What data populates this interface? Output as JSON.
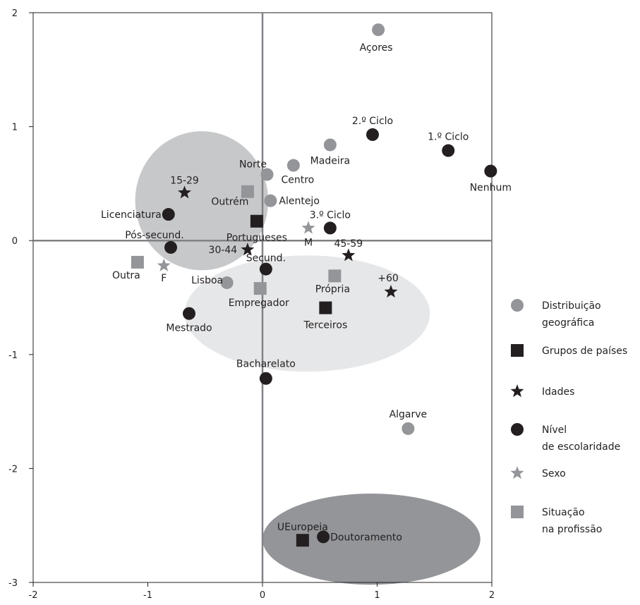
{
  "chart_data": {
    "type": "scatter",
    "title": "",
    "xlabel": "",
    "ylabel": "",
    "xlim": [
      -2,
      2
    ],
    "ylim": [
      -3,
      2
    ],
    "x_ticks": [
      "-2",
      "-1",
      "0",
      "1",
      "2"
    ],
    "y_ticks": [
      "2",
      "1",
      "0",
      "-1",
      "-2",
      "-3"
    ],
    "grid": false,
    "legend_position": "right",
    "ellipses": [
      {
        "cx": -0.53,
        "cy": 0.35,
        "rx": 0.58,
        "ry": 0.61,
        "color": "#c7c8ca"
      },
      {
        "cx": 0.39,
        "cy": -0.64,
        "rx": 1.07,
        "ry": 0.51,
        "color": "#e6e7e8"
      },
      {
        "cx": 0.95,
        "cy": -2.62,
        "rx": 0.95,
        "ry": 0.4,
        "color": "#939598"
      }
    ],
    "series": [
      {
        "name": "Distribuição geográfica",
        "name_lines": [
          "Distribuição",
          "geográfica"
        ],
        "marker": "circle",
        "color": "#939598",
        "points": [
          {
            "label": "Açores",
            "x": 1.01,
            "y": 1.85
          },
          {
            "label": "Madeira",
            "x": 0.59,
            "y": 0.84
          },
          {
            "label": "Centro",
            "x": 0.27,
            "y": 0.66
          },
          {
            "label": "Norte",
            "x": 0.04,
            "y": 0.58
          },
          {
            "label": "Alentejo",
            "x": 0.07,
            "y": 0.35
          },
          {
            "label": "Lisboa",
            "x": -0.31,
            "y": -0.37
          },
          {
            "label": "Algarve",
            "x": 1.27,
            "y": -1.65
          }
        ]
      },
      {
        "name": "Grupos de países",
        "name_lines": [
          "Grupos de países"
        ],
        "marker": "square",
        "color": "#231f20",
        "points": [
          {
            "label": "Portugueses",
            "x": -0.05,
            "y": 0.17
          },
          {
            "label": "Terceiros",
            "x": 0.55,
            "y": -0.59
          },
          {
            "label": "UEuropeia",
            "x": 0.35,
            "y": -2.63
          }
        ]
      },
      {
        "name": "Idades",
        "name_lines": [
          "Idades"
        ],
        "marker": "star",
        "color": "#231f20",
        "points": [
          {
            "label": "15-29",
            "x": -0.68,
            "y": 0.42
          },
          {
            "label": "30-44",
            "x": -0.13,
            "y": -0.08
          },
          {
            "label": "45-59",
            "x": 0.75,
            "y": -0.13
          },
          {
            "label": "+60",
            "x": 1.12,
            "y": -0.45
          }
        ]
      },
      {
        "name": "Nível de escolaridade",
        "name_lines": [
          "Nível",
          "de escolaridade"
        ],
        "marker": "circle",
        "color": "#231f20",
        "points": [
          {
            "label": "2.º Ciclo",
            "x": 0.96,
            "y": 0.93
          },
          {
            "label": "1.º Ciclo",
            "x": 1.62,
            "y": 0.79
          },
          {
            "label": "Nenhum",
            "x": 1.99,
            "y": 0.61
          },
          {
            "label": "Licenciatura",
            "x": -0.82,
            "y": 0.23
          },
          {
            "label": "3.º Ciclo",
            "x": 0.59,
            "y": 0.11
          },
          {
            "label": "Pós-secund.",
            "x": -0.8,
            "y": -0.06
          },
          {
            "label": "Secund.",
            "x": 0.03,
            "y": -0.25
          },
          {
            "label": "Mestrado",
            "x": -0.64,
            "y": -0.64
          },
          {
            "label": "Bacharelato",
            "x": 0.03,
            "y": -1.21
          },
          {
            "label": "Doutoramento",
            "x": 0.53,
            "y": -2.6
          }
        ]
      },
      {
        "name": "Sexo",
        "name_lines": [
          "Sexo"
        ],
        "marker": "star",
        "color": "#939598",
        "points": [
          {
            "label": "M",
            "x": 0.4,
            "y": 0.11
          },
          {
            "label": "F",
            "x": -0.86,
            "y": -0.22
          }
        ]
      },
      {
        "name": "Situação na profissão",
        "name_lines": [
          "Situação",
          "na profissão"
        ],
        "marker": "square",
        "color": "#939598",
        "points": [
          {
            "label": "Outrém",
            "x": -0.13,
            "y": 0.43
          },
          {
            "label": "Outra",
            "x": -1.09,
            "y": -0.19
          },
          {
            "label": "Própria",
            "x": 0.63,
            "y": -0.31
          },
          {
            "label": "Empregador",
            "x": -0.02,
            "y": -0.42
          }
        ]
      }
    ]
  }
}
